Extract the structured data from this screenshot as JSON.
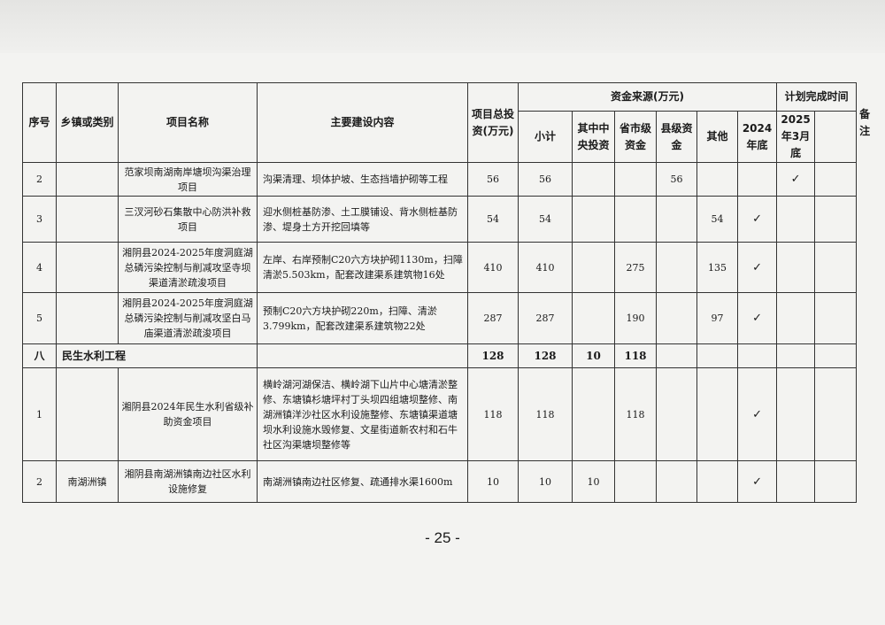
{
  "header": {
    "seq": "序号",
    "town": "乡镇或类别",
    "name": "项目名称",
    "content": "主要建设内容",
    "total": "项目总投资(万元)",
    "funding": "资金来源(万元)",
    "subtotal": "小计",
    "central": "其中中央投资",
    "provincial": "省市级资金",
    "county": "县级资金",
    "other": "其他",
    "plan": "计划完成时间",
    "end2024": "2024年底",
    "mar2025": "2025年3月底",
    "remark": "备注"
  },
  "rows": [
    {
      "seq": "2",
      "town": "",
      "name": "范家坝南湖南岸塘坝沟渠治理项目",
      "content": "沟渠清理、坝体护坡、生态挡墙护砌等工程",
      "total": "56",
      "subtotal": "56",
      "central": "",
      "provincial": "",
      "county": "56",
      "other": "",
      "end2024": "",
      "mar2025": "✓",
      "remark": ""
    },
    {
      "seq": "3",
      "town": "",
      "name": "三汊河砂石集散中心防洪补救项目",
      "content": "迎水侧桩基防渗、土工膜铺设、背水侧桩基防渗、堤身土方开挖回填等",
      "total": "54",
      "subtotal": "54",
      "central": "",
      "provincial": "",
      "county": "",
      "other": "54",
      "end2024": "✓",
      "mar2025": "",
      "remark": ""
    },
    {
      "seq": "4",
      "town": "",
      "name": "湘阴县2024-2025年度洞庭湖总磷污染控制与削减攻坚寺坝渠道清淤疏浚项目",
      "content": "左岸、右岸预制C20六方块护砌1130m，扫障清淤5.503km，配套改建渠系建筑物16处",
      "total": "410",
      "subtotal": "410",
      "central": "",
      "provincial": "275",
      "county": "",
      "other": "135",
      "end2024": "✓",
      "mar2025": "",
      "remark": ""
    },
    {
      "seq": "5",
      "town": "",
      "name": "湘阴县2024-2025年度洞庭湖总磷污染控制与削减攻坚白马庙渠道清淤疏浚项目",
      "content": "预制C20六方块护砌220m，扫障、清淤3.799km，配套改建渠系建筑物22处",
      "total": "287",
      "subtotal": "287",
      "central": "",
      "provincial": "190",
      "county": "",
      "other": "97",
      "end2024": "✓",
      "mar2025": "",
      "remark": ""
    }
  ],
  "section": {
    "seq": "八",
    "title": "民生水利工程",
    "total": "128",
    "subtotal": "128",
    "central": "10",
    "provincial": "118",
    "county": "",
    "other": "",
    "end2024": "",
    "mar2025": "",
    "remark": ""
  },
  "rows2": [
    {
      "seq": "1",
      "town": "",
      "name": "湘阴县2024年民生水利省级补助资金项目",
      "content": "横岭湖河湖保洁、横岭湖下山片中心塘清淤整修、东塘镇杉塘坪村丁头坝四组塘坝整修、南湖洲镇洋沙社区水利设施整修、东塘镇渠道塘坝水利设施水毁修复、文星街道新农村和石牛社区沟渠塘坝整修等",
      "total": "118",
      "subtotal": "118",
      "central": "",
      "provincial": "118",
      "county": "",
      "other": "",
      "end2024": "✓",
      "mar2025": "",
      "remark": ""
    },
    {
      "seq": "2",
      "town": "南湖洲镇",
      "name": "湘阴县南湖洲镇南边社区水利设施修复",
      "content": "南湖洲镇南边社区修复、疏通排水渠1600m",
      "total": "10",
      "subtotal": "10",
      "central": "10",
      "provincial": "",
      "county": "",
      "other": "",
      "end2024": "✓",
      "mar2025": "",
      "remark": ""
    }
  ],
  "page_number": "- 25 -"
}
